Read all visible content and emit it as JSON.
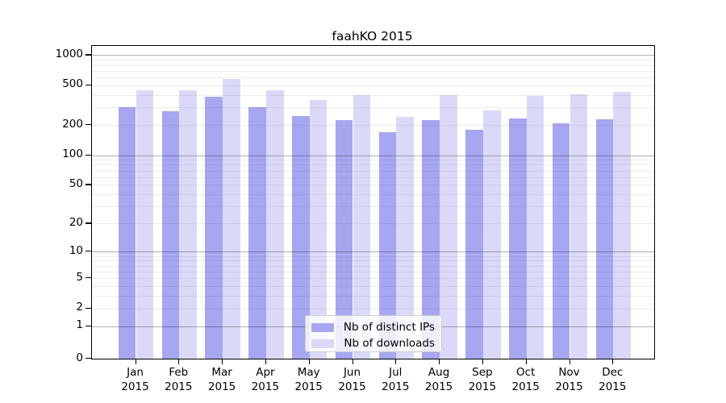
{
  "title": "faahKO 2015",
  "chart_data": {
    "type": "bar",
    "title": "faahKO 2015",
    "categories": [
      "Jan 2015",
      "Feb 2015",
      "Mar 2015",
      "Apr 2015",
      "May 2015",
      "Jun 2015",
      "Jul 2015",
      "Aug 2015",
      "Sep 2015",
      "Oct 2015",
      "Nov 2015",
      "Dec 2015"
    ],
    "month_labels": [
      "Jan",
      "Feb",
      "Mar",
      "Apr",
      "May",
      "Jun",
      "Jul",
      "Aug",
      "Sep",
      "Oct",
      "Nov",
      "Dec"
    ],
    "year_label": "2015",
    "series": [
      {
        "name": "Nb of distinct IPs",
        "color": "#a6a6f1",
        "values": [
          300,
          275,
          385,
          300,
          245,
          225,
          170,
          225,
          180,
          235,
          210,
          230
        ]
      },
      {
        "name": "Nb of downloads",
        "color": "#dadaf8",
        "values": [
          450,
          450,
          575,
          450,
          355,
          400,
          240,
          400,
          280,
          390,
          410,
          430
        ]
      }
    ],
    "yscale": "log1p",
    "ylim": [
      0,
      1200
    ],
    "yticks": [
      0,
      1,
      2,
      5,
      10,
      20,
      50,
      100,
      200,
      500,
      1000
    ],
    "grid": true,
    "grid_minor": true,
    "legend_position": "lower center",
    "xlabel": "",
    "ylabel": ""
  },
  "colors": {
    "bar_dark": "#a6a6f1",
    "bar_light": "#dadaf8",
    "grid_minor": "rgba(0,0,0,0.07)",
    "grid_major": "rgba(0,0,0,0.30)",
    "axis": "#000000",
    "legend_border": "#cccccc"
  }
}
